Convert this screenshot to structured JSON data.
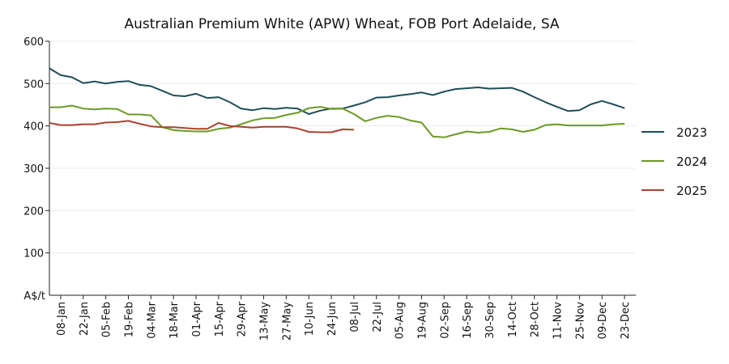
{
  "chart_data": {
    "type": "line",
    "title": "Australian Premium White (APW) Wheat, FOB Port Adelaide, SA",
    "ylabel": "",
    "y_unit_label": "A$/t",
    "ylim": [
      0,
      600
    ],
    "yticks": [
      100,
      200,
      300,
      400,
      500,
      600
    ],
    "grid": true,
    "legend_position": "right",
    "x": [
      "01-Jan",
      "08-Jan",
      "15-Jan",
      "22-Jan",
      "29-Jan",
      "05-Feb",
      "12-Feb",
      "19-Feb",
      "26-Feb",
      "04-Mar",
      "11-Mar",
      "18-Mar",
      "25-Mar",
      "01-Apr",
      "08-Apr",
      "15-Apr",
      "22-Apr",
      "29-Apr",
      "06-May",
      "13-May",
      "20-May",
      "27-May",
      "03-Jun",
      "10-Jun",
      "17-Jun",
      "24-Jun",
      "01-Jul",
      "08-Jul",
      "15-Jul",
      "22-Jul",
      "29-Jul",
      "05-Aug",
      "12-Aug",
      "19-Aug",
      "26-Aug",
      "02-Sep",
      "09-Sep",
      "16-Sep",
      "23-Sep",
      "30-Sep",
      "07-Oct",
      "14-Oct",
      "21-Oct",
      "28-Oct",
      "04-Nov",
      "11-Nov",
      "18-Nov",
      "25-Nov",
      "02-Dec",
      "09-Dec",
      "16-Dec",
      "23-Dec",
      "30-Dec"
    ],
    "x_tick_labels": [
      "08-Jan",
      "22-Jan",
      "05-Feb",
      "19-Feb",
      "04-Mar",
      "18-Mar",
      "01-Apr",
      "15-Apr",
      "29-Apr",
      "13-May",
      "27-May",
      "10-Jun",
      "24-Jun",
      "08-Jul",
      "22-Jul",
      "05-Aug",
      "19-Aug",
      "02-Sep",
      "16-Sep",
      "30-Sep",
      "14-Oct",
      "28-Oct",
      "11-Nov",
      "25-Nov",
      "09-Dec",
      "23-Dec"
    ],
    "series": [
      {
        "name": "2023",
        "color": "#1d4e57",
        "values": [
          536,
          520,
          515,
          501,
          505,
          500,
          504,
          506,
          497,
          494,
          483,
          472,
          470,
          476,
          466,
          468,
          456,
          441,
          437,
          442,
          440,
          443,
          441,
          428,
          436,
          441,
          441,
          448,
          456,
          467,
          468,
          472,
          475,
          479,
          473,
          481,
          487,
          489,
          491,
          488,
          489,
          490,
          481,
          468,
          456,
          445,
          435,
          437,
          451,
          459,
          451,
          442,
          null
        ]
      },
      {
        "name": "2024",
        "color": "#6c9a25",
        "values": [
          444,
          444,
          448,
          441,
          439,
          441,
          440,
          427,
          427,
          425,
          397,
          390,
          388,
          387,
          387,
          393,
          396,
          404,
          413,
          418,
          419,
          426,
          431,
          442,
          445,
          440,
          441,
          428,
          411,
          419,
          424,
          421,
          413,
          408,
          375,
          373,
          380,
          387,
          384,
          386,
          394,
          392,
          386,
          391,
          402,
          404,
          401,
          401,
          401,
          401,
          404,
          405,
          null
        ]
      },
      {
        "name": "2025",
        "color": "#a9432f",
        "values": [
          407,
          402,
          402,
          404,
          404,
          408,
          409,
          412,
          405,
          399,
          397,
          397,
          395,
          393,
          393,
          407,
          400,
          398,
          396,
          398,
          398,
          398,
          394,
          386,
          385,
          385,
          392,
          391,
          null,
          null,
          null,
          null,
          null,
          null,
          null,
          null,
          null,
          null,
          null,
          null,
          null,
          null,
          null,
          null,
          null,
          null,
          null,
          null,
          null,
          null,
          null,
          null,
          null
        ]
      }
    ]
  }
}
